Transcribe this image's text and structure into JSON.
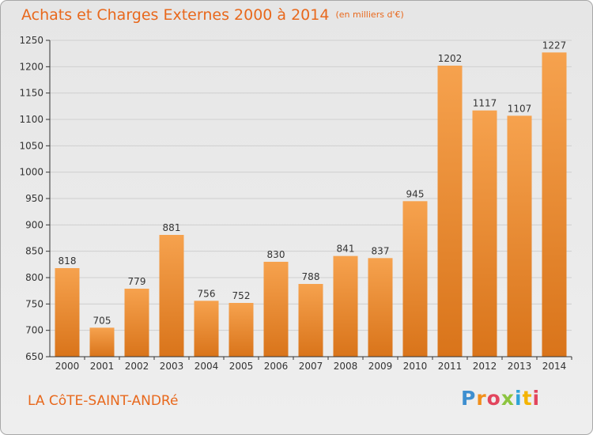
{
  "title": "Achats et Charges Externes 2000 à 2014",
  "unit_note": "(en milliers d'€)",
  "commune": "LA CôTE-SAINT-ANDRé",
  "brand": {
    "letters": [
      "P",
      "r",
      "o",
      "x",
      "i",
      "t",
      "i"
    ]
  },
  "colors": {
    "title": "#e8681c",
    "bar_light": "#f6a24e",
    "bar_dark": "#d9741a",
    "grid": "#cfcfcf",
    "axis": "#333333"
  },
  "chart_data": {
    "type": "bar",
    "categories": [
      "2000",
      "2001",
      "2002",
      "2003",
      "2004",
      "2005",
      "2006",
      "2007",
      "2008",
      "2009",
      "2010",
      "2011",
      "2012",
      "2013",
      "2014"
    ],
    "values": [
      818,
      705,
      779,
      881,
      756,
      752,
      830,
      788,
      841,
      837,
      945,
      1202,
      1117,
      1107,
      1227
    ],
    "ylim": [
      650,
      1250
    ],
    "yticks": [
      650,
      700,
      750,
      800,
      850,
      900,
      950,
      1000,
      1050,
      1100,
      1150,
      1200,
      1250
    ],
    "grid": true,
    "legend": "none"
  }
}
